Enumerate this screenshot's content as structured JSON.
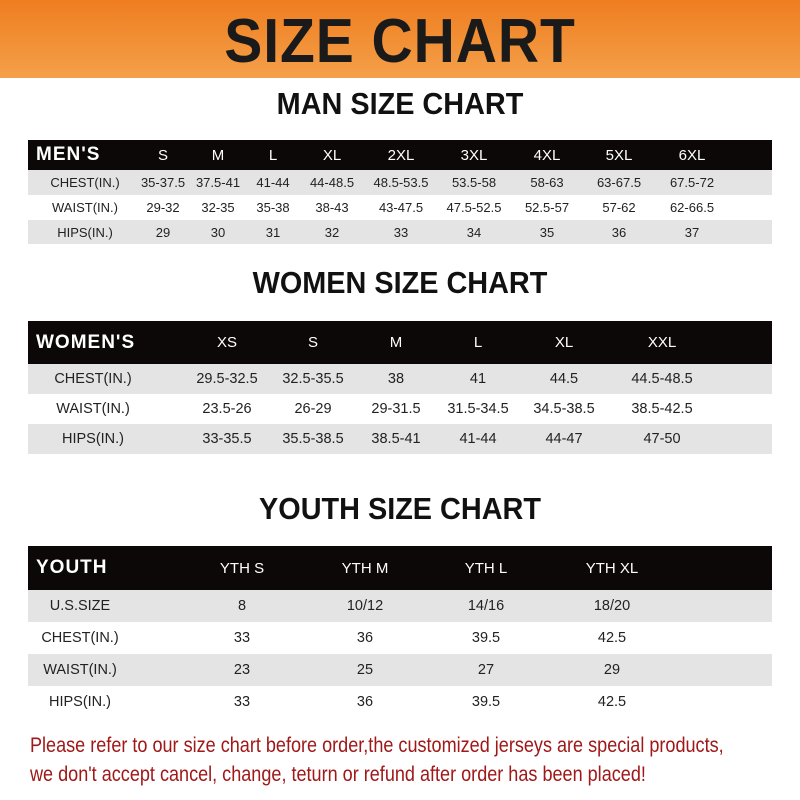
{
  "banner": {
    "title": "SIZE CHART",
    "color": "#ef7d1f"
  },
  "men": {
    "title": "MAN SIZE CHART",
    "header": [
      "MEN'S",
      "S",
      "M",
      "L",
      "XL",
      "2XL",
      "3XL",
      "4XL",
      "5XL",
      "6XL"
    ],
    "rows": [
      [
        "CHEST(IN.)",
        "35-37.5",
        "37.5-41",
        "41-44",
        "44-48.5",
        "48.5-53.5",
        "53.5-58",
        "58-63",
        "63-67.5",
        "67.5-72"
      ],
      [
        "WAIST(IN.)",
        "29-32",
        "32-35",
        "35-38",
        "38-43",
        "43-47.5",
        "47.5-52.5",
        "52.5-57",
        "57-62",
        "62-66.5"
      ],
      [
        "HIPS(IN.)",
        "29",
        "30",
        "31",
        "32",
        "33",
        "34",
        "35",
        "36",
        "37"
      ]
    ]
  },
  "women": {
    "title": "WOMEN SIZE CHART",
    "header": [
      "WOMEN'S",
      "XS",
      "S",
      "M",
      "L",
      "XL",
      "XXL"
    ],
    "rows": [
      [
        "CHEST(IN.)",
        "29.5-32.5",
        "32.5-35.5",
        "38",
        "41",
        "44.5",
        "44.5-48.5"
      ],
      [
        "WAIST(IN.)",
        "23.5-26",
        "26-29",
        "29-31.5",
        "31.5-34.5",
        "34.5-38.5",
        "38.5-42.5"
      ],
      [
        "HIPS(IN.)",
        "33-35.5",
        "35.5-38.5",
        "38.5-41",
        "41-44",
        "44-47",
        "47-50"
      ]
    ]
  },
  "youth": {
    "title": "YOUTH SIZE CHART",
    "header": [
      "YOUTH",
      "YTH S",
      "YTH M",
      "YTH L",
      "YTH XL"
    ],
    "rows": [
      [
        "U.S.SIZE",
        "8",
        "10/12",
        "14/16",
        "18/20"
      ],
      [
        "CHEST(IN.)",
        "33",
        "36",
        "39.5",
        "42.5"
      ],
      [
        "WAIST(IN.)",
        "23",
        "25",
        "27",
        "29"
      ],
      [
        "HIPS(IN.)",
        "33",
        "36",
        "39.5",
        "42.5"
      ]
    ]
  },
  "note": {
    "line1": "Please refer to our size chart before order,the customized jerseys are special products,",
    "line2": "we don't accept cancel, change, teturn or refund after order has been placed!",
    "color": "#a01818"
  }
}
